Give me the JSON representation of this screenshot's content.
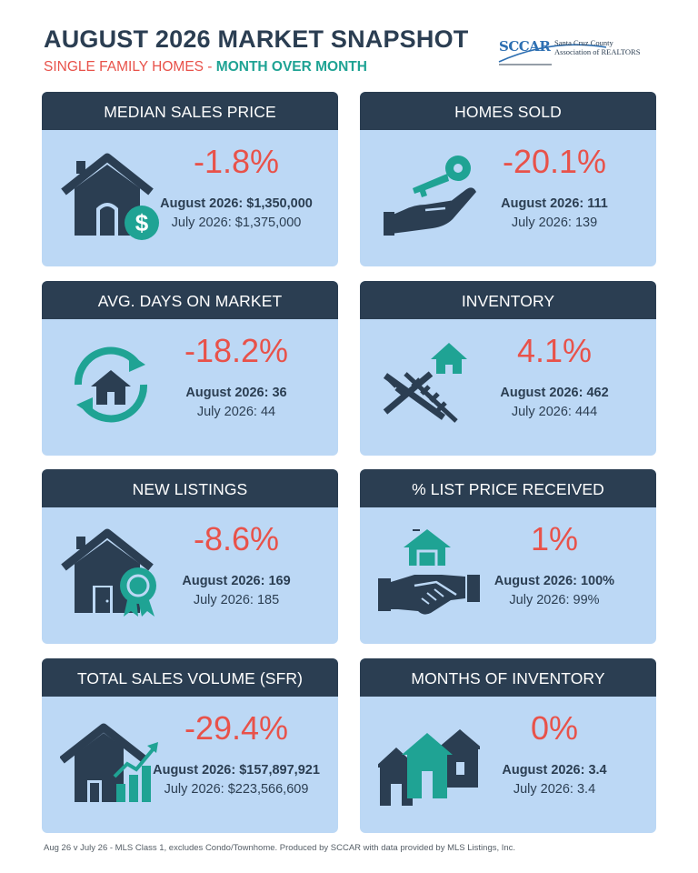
{
  "header": {
    "title": "AUGUST 2026 MARKET SNAPSHOT",
    "subtitle_a": "SINGLE FAMILY HOMES - ",
    "subtitle_b": "MONTH OVER MONTH"
  },
  "logo": {
    "text": "SCCAR",
    "line1": "Santa Cruz County",
    "line2": "Association of REALTORS"
  },
  "colors": {
    "navy": "#2b3e52",
    "card_bg": "#bcd8f5",
    "red": "#e8524a",
    "teal": "#1fa394"
  },
  "cards": [
    {
      "title": "MEDIAN SALES PRICE",
      "pct": "-1.8%",
      "line1": "August 2026: $1,350,000",
      "line2": "July 2026: $1,375,000",
      "icon": "house-dollar-icon"
    },
    {
      "title": "HOMES SOLD",
      "pct": "-20.1%",
      "line1": "August 2026: 111",
      "line2": "July  2026: 139",
      "icon": "key-hand-icon"
    },
    {
      "title": "AVG. DAYS ON MARKET",
      "pct": "-18.2%",
      "line1": "August 2026: 36",
      "line2": "July 2026: 44",
      "icon": "house-cycle-icon"
    },
    {
      "title": "INVENTORY",
      "pct": "4.1%",
      "line1": "August 2026: 462",
      "line2": "July 2026: 444",
      "icon": "house-hammer-icon"
    },
    {
      "title": "NEW LISTINGS",
      "pct": "-8.6%",
      "line1": "August 2026: 169",
      "line2": "July 2026: 185",
      "icon": "house-badge-icon"
    },
    {
      "title": "% LIST PRICE RECEIVED",
      "pct": "1%",
      "line1": "August 2026: 100%",
      "line2": "July 2026: 99%",
      "icon": "handshake-house-icon"
    },
    {
      "title": "TOTAL SALES VOLUME (SFR)",
      "pct": "-29.4%",
      "line1": "August 2026: $157,897,921",
      "line2": "July 2026: $223,566,609",
      "icon": "house-chart-icon"
    },
    {
      "title": "MONTHS OF INVENTORY",
      "pct": "0%",
      "line1": "August 2026: 3.4",
      "line2": "July 2026: 3.4",
      "icon": "three-houses-icon"
    }
  ],
  "footer": "Aug 26  v  July 26 - MLS Class 1, excludes Condo/Townhome. Produced by SCCAR with data provided by MLS Listings, Inc."
}
